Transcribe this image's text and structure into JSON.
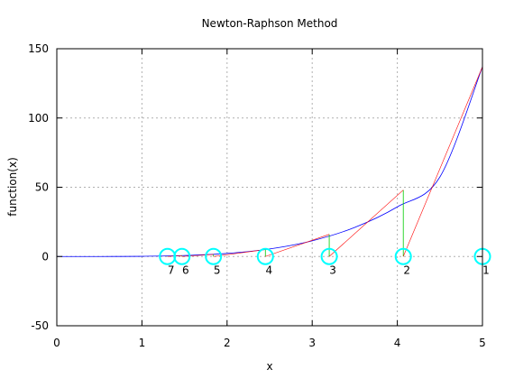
{
  "chart_data": {
    "type": "line",
    "title": "Newton-Raphson Method",
    "xlabel": "x",
    "ylabel": "function(x)",
    "xlim": [
      0,
      5
    ],
    "ylim": [
      -50,
      150
    ],
    "xticks": [
      "0",
      "1",
      "2",
      "3",
      "4",
      "5"
    ],
    "yticks": [
      "-50",
      "0",
      "50",
      "100",
      "150"
    ],
    "grid": true,
    "legend": "none",
    "colors": {
      "function_curve": "#0000ff",
      "tangent_lines": "#ff0000",
      "vertical_drops": "#00cc00",
      "iteration_markers": "#00ffff"
    },
    "function_curve": {
      "x": [
        0,
        0.5,
        1,
        1.5,
        2,
        2.5,
        3,
        3.5,
        4,
        4.5,
        5
      ],
      "y": [
        0,
        0.01,
        0.14,
        0.71,
        2.24,
        5.47,
        11.34,
        21.0,
        35.84,
        57.4,
        137
      ]
    },
    "iterations": [
      {
        "label": "1",
        "x": 5.0,
        "fx": 137
      },
      {
        "label": "2",
        "x": 4.07,
        "fx": 48
      },
      {
        "label": "3",
        "x": 3.2,
        "fx": 16
      },
      {
        "label": "4",
        "x": 2.45,
        "fx": 5
      },
      {
        "label": "5",
        "x": 1.84,
        "fx": 1.5
      },
      {
        "label": "6",
        "x": 1.47,
        "fx": 0.6
      },
      {
        "label": "7",
        "x": 1.3,
        "fx": 0.3
      }
    ]
  }
}
